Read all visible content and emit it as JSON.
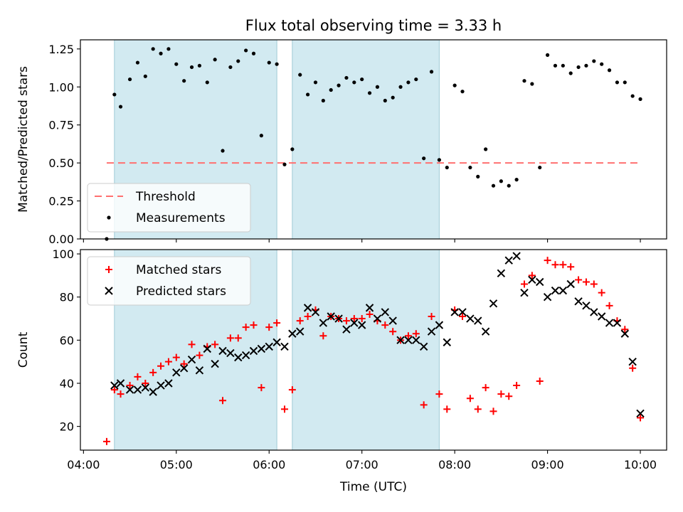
{
  "title": "Flux total observing time = 3.33 h",
  "colors": {
    "shade": "#add8e6",
    "threshold": "#ff7070",
    "matched": "#ff0000",
    "predicted": "#000000",
    "measurement": "#000000"
  },
  "shaded_intervals": [
    [
      "04:20",
      "06:05"
    ],
    [
      "06:15",
      "07:50"
    ]
  ],
  "chart_data": [
    {
      "type": "scatter",
      "panel": "top",
      "ylabel": "Matched/Predicted stars",
      "xlabel": "",
      "ylim": [
        0,
        1.31
      ],
      "yticks": [
        "0.00",
        "0.25",
        "0.50",
        "0.75",
        "1.00",
        "1.25"
      ],
      "legend": {
        "placement": "lower-left",
        "entries": [
          "Threshold",
          "Measurements"
        ]
      },
      "threshold": {
        "name": "Threshold",
        "y": 0.5,
        "x_range": [
          "04:15",
          "10:00"
        ]
      },
      "series": [
        {
          "name": "Measurements",
          "marker": "dot",
          "points": [
            [
              "04:15",
              0.0
            ],
            [
              "04:20",
              0.95
            ],
            [
              "04:24",
              0.87
            ],
            [
              "04:30",
              1.05
            ],
            [
              "04:35",
              1.16
            ],
            [
              "04:40",
              1.07
            ],
            [
              "04:45",
              1.25
            ],
            [
              "04:50",
              1.22
            ],
            [
              "04:55",
              1.25
            ],
            [
              "05:00",
              1.15
            ],
            [
              "05:05",
              1.04
            ],
            [
              "05:10",
              1.13
            ],
            [
              "05:15",
              1.14
            ],
            [
              "05:20",
              1.03
            ],
            [
              "05:25",
              1.18
            ],
            [
              "05:30",
              0.58
            ],
            [
              "05:35",
              1.13
            ],
            [
              "05:40",
              1.17
            ],
            [
              "05:45",
              1.24
            ],
            [
              "05:50",
              1.22
            ],
            [
              "05:55",
              0.68
            ],
            [
              "06:00",
              1.16
            ],
            [
              "06:05",
              1.15
            ],
            [
              "06:10",
              0.49
            ],
            [
              "06:15",
              0.59
            ],
            [
              "06:20",
              1.08
            ],
            [
              "06:25",
              0.95
            ],
            [
              "06:30",
              1.03
            ],
            [
              "06:35",
              0.91
            ],
            [
              "06:40",
              0.98
            ],
            [
              "06:45",
              1.01
            ],
            [
              "06:50",
              1.06
            ],
            [
              "06:55",
              1.03
            ],
            [
              "07:00",
              1.05
            ],
            [
              "07:05",
              0.96
            ],
            [
              "07:10",
              1.0
            ],
            [
              "07:15",
              0.91
            ],
            [
              "07:20",
              0.93
            ],
            [
              "07:25",
              1.0
            ],
            [
              "07:30",
              1.03
            ],
            [
              "07:35",
              1.05
            ],
            [
              "07:40",
              0.53
            ],
            [
              "07:45",
              1.1
            ],
            [
              "07:50",
              0.52
            ],
            [
              "07:55",
              0.47
            ],
            [
              "08:00",
              1.01
            ],
            [
              "08:05",
              0.97
            ],
            [
              "08:10",
              0.47
            ],
            [
              "08:15",
              0.41
            ],
            [
              "08:20",
              0.59
            ],
            [
              "08:25",
              0.35
            ],
            [
              "08:30",
              0.38
            ],
            [
              "08:35",
              0.35
            ],
            [
              "08:40",
              0.39
            ],
            [
              "08:45",
              1.04
            ],
            [
              "08:50",
              1.02
            ],
            [
              "08:55",
              0.47
            ],
            [
              "09:00",
              1.21
            ],
            [
              "09:05",
              1.14
            ],
            [
              "09:10",
              1.14
            ],
            [
              "09:15",
              1.09
            ],
            [
              "09:20",
              1.13
            ],
            [
              "09:25",
              1.14
            ],
            [
              "09:30",
              1.17
            ],
            [
              "09:35",
              1.15
            ],
            [
              "09:40",
              1.11
            ],
            [
              "09:45",
              1.03
            ],
            [
              "09:50",
              1.03
            ],
            [
              "09:55",
              0.94
            ],
            [
              "10:00",
              0.92
            ]
          ]
        }
      ]
    },
    {
      "type": "scatter",
      "panel": "bottom",
      "ylabel": "Count",
      "xlabel": "Time (UTC)",
      "ylim": [
        9,
        102
      ],
      "yticks": [
        "20",
        "40",
        "60",
        "80",
        "100"
      ],
      "xticks": [
        "04:00",
        "05:00",
        "06:00",
        "07:00",
        "08:00",
        "09:00",
        "10:00"
      ],
      "xlim": [
        "03:58",
        "10:17"
      ],
      "legend": {
        "placement": "upper-left",
        "entries": [
          "Matched stars",
          "Predicted stars"
        ]
      },
      "series": [
        {
          "name": "Matched stars",
          "marker": "plus",
          "points": [
            [
              "04:15",
              13
            ],
            [
              "04:20",
              37
            ],
            [
              "04:24",
              35
            ],
            [
              "04:30",
              39
            ],
            [
              "04:35",
              43
            ],
            [
              "04:40",
              40
            ],
            [
              "04:45",
              45
            ],
            [
              "04:50",
              48
            ],
            [
              "04:55",
              50
            ],
            [
              "05:00",
              52
            ],
            [
              "05:05",
              49
            ],
            [
              "05:10",
              58
            ],
            [
              "05:15",
              53
            ],
            [
              "05:20",
              57
            ],
            [
              "05:25",
              58
            ],
            [
              "05:30",
              32
            ],
            [
              "05:35",
              61
            ],
            [
              "05:40",
              61
            ],
            [
              "05:45",
              66
            ],
            [
              "05:50",
              67
            ],
            [
              "05:55",
              38
            ],
            [
              "06:00",
              66
            ],
            [
              "06:05",
              68
            ],
            [
              "06:10",
              28
            ],
            [
              "06:15",
              37
            ],
            [
              "06:20",
              69
            ],
            [
              "06:25",
              71
            ],
            [
              "06:30",
              74
            ],
            [
              "06:35",
              62
            ],
            [
              "06:40",
              71
            ],
            [
              "06:45",
              70
            ],
            [
              "06:50",
              69
            ],
            [
              "06:55",
              70
            ],
            [
              "07:00",
              70
            ],
            [
              "07:05",
              72
            ],
            [
              "07:10",
              69
            ],
            [
              "07:15",
              67
            ],
            [
              "07:20",
              64
            ],
            [
              "07:25",
              60
            ],
            [
              "07:30",
              62
            ],
            [
              "07:35",
              63
            ],
            [
              "07:40",
              30
            ],
            [
              "07:45",
              71
            ],
            [
              "07:50",
              35
            ],
            [
              "07:55",
              28
            ],
            [
              "08:00",
              74
            ],
            [
              "08:05",
              71
            ],
            [
              "08:10",
              33
            ],
            [
              "08:15",
              28
            ],
            [
              "08:20",
              38
            ],
            [
              "08:25",
              27
            ],
            [
              "08:30",
              35
            ],
            [
              "08:35",
              34
            ],
            [
              "08:40",
              39
            ],
            [
              "08:45",
              86
            ],
            [
              "08:50",
              90
            ],
            [
              "08:55",
              41
            ],
            [
              "09:00",
              97
            ],
            [
              "09:05",
              95
            ],
            [
              "09:10",
              95
            ],
            [
              "09:15",
              94
            ],
            [
              "09:20",
              88
            ],
            [
              "09:25",
              87
            ],
            [
              "09:30",
              86
            ],
            [
              "09:35",
              82
            ],
            [
              "09:40",
              76
            ],
            [
              "09:45",
              69
            ],
            [
              "09:50",
              65
            ],
            [
              "09:55",
              47
            ],
            [
              "10:00",
              24
            ]
          ]
        },
        {
          "name": "Predicted stars",
          "marker": "x",
          "points": [
            [
              "04:20",
              39
            ],
            [
              "04:24",
              40
            ],
            [
              "04:30",
              37
            ],
            [
              "04:35",
              37
            ],
            [
              "04:40",
              38
            ],
            [
              "04:45",
              36
            ],
            [
              "04:50",
              39
            ],
            [
              "04:55",
              40
            ],
            [
              "05:00",
              45
            ],
            [
              "05:05",
              47
            ],
            [
              "05:10",
              51
            ],
            [
              "05:15",
              46
            ],
            [
              "05:20",
              56
            ],
            [
              "05:25",
              49
            ],
            [
              "05:30",
              55
            ],
            [
              "05:35",
              54
            ],
            [
              "05:40",
              52
            ],
            [
              "05:45",
              53
            ],
            [
              "05:50",
              55
            ],
            [
              "05:55",
              56
            ],
            [
              "06:00",
              57
            ],
            [
              "06:05",
              59
            ],
            [
              "06:10",
              57
            ],
            [
              "06:15",
              63
            ],
            [
              "06:20",
              64
            ],
            [
              "06:25",
              75
            ],
            [
              "06:30",
              73
            ],
            [
              "06:35",
              68
            ],
            [
              "06:40",
              71
            ],
            [
              "06:45",
              70
            ],
            [
              "06:50",
              65
            ],
            [
              "06:55",
              68
            ],
            [
              "07:00",
              67
            ],
            [
              "07:05",
              75
            ],
            [
              "07:10",
              70
            ],
            [
              "07:15",
              73
            ],
            [
              "07:20",
              69
            ],
            [
              "07:25",
              60
            ],
            [
              "07:30",
              60
            ],
            [
              "07:35",
              60
            ],
            [
              "07:40",
              57
            ],
            [
              "07:45",
              64
            ],
            [
              "07:50",
              67
            ],
            [
              "07:55",
              59
            ],
            [
              "08:00",
              73
            ],
            [
              "08:05",
              73
            ],
            [
              "08:10",
              70
            ],
            [
              "08:15",
              69
            ],
            [
              "08:20",
              64
            ],
            [
              "08:25",
              77
            ],
            [
              "08:30",
              91
            ],
            [
              "08:35",
              97
            ],
            [
              "08:40",
              99
            ],
            [
              "08:45",
              82
            ],
            [
              "08:50",
              88
            ],
            [
              "08:55",
              87
            ],
            [
              "09:00",
              80
            ],
            [
              "09:05",
              83
            ],
            [
              "09:10",
              83
            ],
            [
              "09:15",
              86
            ],
            [
              "09:20",
              78
            ],
            [
              "09:25",
              76
            ],
            [
              "09:30",
              73
            ],
            [
              "09:35",
              71
            ],
            [
              "09:40",
              68
            ],
            [
              "09:45",
              68
            ],
            [
              "09:50",
              63
            ],
            [
              "09:55",
              50
            ],
            [
              "10:00",
              26
            ]
          ]
        }
      ]
    }
  ]
}
